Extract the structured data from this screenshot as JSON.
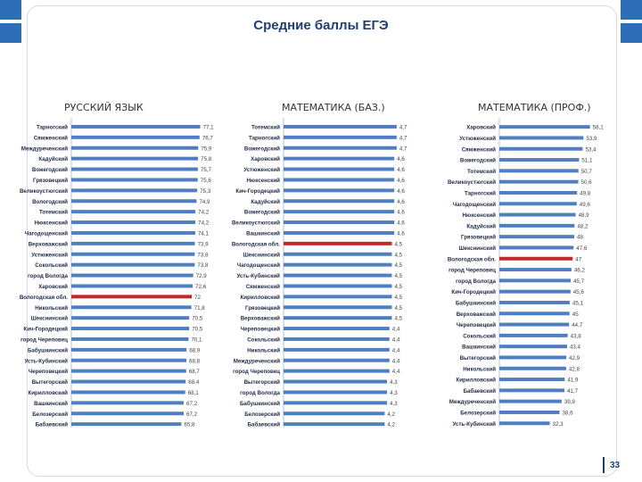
{
  "slide": {
    "title": "Средние баллы ЕГЭ",
    "page_number": "33"
  },
  "colors": {
    "bar": "#4f7fc0",
    "highlight": "#c0282d",
    "label": "#1f2a44",
    "accent": "#2d6db5"
  },
  "chart_data": [
    {
      "type": "bar",
      "orientation": "horizontal",
      "title": "РУССКИЙ ЯЗЫК",
      "xlim": [
        0,
        80
      ],
      "highlight": "Вологодская обл.",
      "categories": [
        "Тарногский",
        "Сямженский",
        "Междуреченский",
        "Кадуйский",
        "Вожегодский",
        "Грязовецкий",
        "Великоустюгский",
        "Вологодский",
        "Тотемский",
        "Нюксенский",
        "Чагодощенский",
        "Верховажский",
        "Устюженский",
        "Сокольский",
        "город Вологда",
        "Харовский",
        "Вологодская обл.",
        "Никольский",
        "Шекснинский",
        "Кич-Городецкий",
        "город Череповец",
        "Бабушкинский",
        "Усть-Кубинский",
        "Череповецкий",
        "Вытегорский",
        "Кирилловский",
        "Вашкинский",
        "Белозерский",
        "Бабаевский"
      ],
      "values": [
        77.1,
        76.7,
        75.9,
        75.8,
        75.7,
        75.6,
        75.3,
        74.9,
        74.2,
        74.2,
        74.1,
        73.9,
        73.8,
        73.8,
        72.9,
        72.6,
        72,
        71.8,
        70.5,
        70.5,
        70.1,
        68.9,
        68.8,
        68.7,
        68.4,
        68.1,
        67.2,
        67.2,
        65.8
      ],
      "value_labels": [
        "77,1",
        "76,7",
        "75,9",
        "75,8",
        "75,7",
        "75,6",
        "75,3",
        "74,9",
        "74,2",
        "74,2",
        "74,1",
        "73,9",
        "73,8",
        "73,8",
        "72,9",
        "72,6",
        "72",
        "71,8",
        "70,5",
        "70,5",
        "70,1",
        "68,9",
        "68,8",
        "68,7",
        "68,4",
        "68,1",
        "67,2",
        "67,2",
        "65,8"
      ]
    },
    {
      "type": "bar",
      "orientation": "horizontal",
      "title": "МАТЕМАТИКА (БАЗ.)",
      "xlim": [
        0,
        5
      ],
      "highlight": "Вологодская обл.",
      "categories": [
        "Тотемский",
        "Тарногский",
        "Вожегодский",
        "Харовский",
        "Устюженский",
        "Нюксенский",
        "Кич-Городецкий",
        "Кадуйский",
        "Вожегодский",
        "Великоустюгский",
        "Вашкинский",
        "Вологодская обл.",
        "Шекснинский",
        "Чагодощенский",
        "Усть-Кубинский",
        "Сямженский",
        "Кирилловский",
        "Грязовецкий",
        "Верховажский",
        "Череповецкий",
        "Сокольский",
        "Никольский",
        "Междуреченский",
        "город Череповец",
        "Вытегорский",
        "город Вологда",
        "Бабушкинский",
        "Белозерский",
        "Бабаевский"
      ],
      "values": [
        4.7,
        4.7,
        4.7,
        4.6,
        4.6,
        4.6,
        4.6,
        4.6,
        4.6,
        4.6,
        4.6,
        4.5,
        4.5,
        4.5,
        4.5,
        4.5,
        4.5,
        4.5,
        4.5,
        4.4,
        4.4,
        4.4,
        4.4,
        4.4,
        4.3,
        4.3,
        4.3,
        4.2,
        4.2
      ],
      "value_labels": [
        "4,7",
        "4,7",
        "4,7",
        "4,6",
        "4,6",
        "4,6",
        "4,6",
        "4,6",
        "4,6",
        "4,6",
        "4,6",
        "4,5",
        "4,5",
        "4,5",
        "4,5",
        "4,5",
        "4,5",
        "4,5",
        "4,5",
        "4,4",
        "4,4",
        "4,4",
        "4,4",
        "4,4",
        "4,3",
        "4,3",
        "4,3",
        "4,2",
        "4,2"
      ]
    },
    {
      "type": "bar",
      "orientation": "horizontal",
      "title": "МАТЕМАТИКА (ПРОФ.)",
      "xlim": [
        0,
        60
      ],
      "highlight": "Вологодская обл.",
      "categories": [
        "Харовский",
        "Устюженский",
        "Сямженский",
        "Вожегодский",
        "Тотемский",
        "Великоустюгский",
        "Тарногский",
        "Чагодощенский",
        "Нюксенский",
        "Кадуйский",
        "Грязовецкий",
        "Шекснинский",
        "Вологодская обл.",
        "город Череповец",
        "город Вологда",
        "Кич-Городецкий",
        "Бабушкинский",
        "Верховажский",
        "Череповецкий",
        "Сокольский",
        "Вашкинский",
        "Вытегорский",
        "Никольский",
        "Кирилловский",
        "Бабаевский",
        "Междуреченский",
        "Белозерский",
        "Усть-Кубинский"
      ],
      "values": [
        58.1,
        53.9,
        53.4,
        51.1,
        50.7,
        50.6,
        49.8,
        49.6,
        48.9,
        48.2,
        48,
        47.6,
        47,
        46.2,
        45.7,
        45.6,
        45.1,
        45,
        44.7,
        43.8,
        43.4,
        42.9,
        42.8,
        41.9,
        41.7,
        39.9,
        38.6,
        32.3
      ],
      "value_labels": [
        "58,1",
        "53,9",
        "53,4",
        "51,1",
        "50,7",
        "50,6",
        "49,8",
        "49,6",
        "48,9",
        "48,2",
        "48",
        "47,6",
        "47",
        "46,2",
        "45,7",
        "45,6",
        "45,1",
        "45",
        "44,7",
        "43,8",
        "43,4",
        "42,9",
        "42,8",
        "41,9",
        "41,7",
        "39,9",
        "38,6",
        "32,3"
      ]
    }
  ]
}
